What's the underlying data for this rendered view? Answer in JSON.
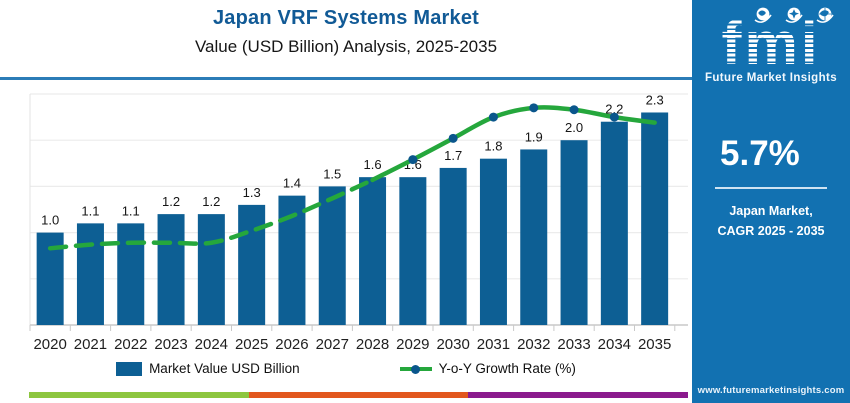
{
  "header": {
    "title": "Japan VRF Systems Market",
    "subtitle": "Value (USD Billion) Analysis, 2025-2035"
  },
  "chart_data": {
    "type": "bar",
    "title": "Japan VRF Systems Market",
    "subtitle": "Value (USD Billion) Analysis, 2025-2035",
    "categories": [
      "2020",
      "2021",
      "2022",
      "2023",
      "2024",
      "2025",
      "2026",
      "2027",
      "2028",
      "2029",
      "2030",
      "2031",
      "2032",
      "2033",
      "2034",
      "2035"
    ],
    "bar_series": {
      "name": "Market Value USD Billion",
      "values": [
        1.0,
        1.1,
        1.1,
        1.2,
        1.2,
        1.3,
        1.4,
        1.5,
        1.6,
        1.6,
        1.7,
        1.8,
        1.9,
        2.0,
        2.2,
        2.3
      ],
      "labels": [
        "1.0",
        "1.1",
        "1.1",
        "1.2",
        "1.2",
        "1.3",
        "1.4",
        "1.5",
        "1.6",
        "1.6",
        "1.7",
        "1.8",
        "1.9",
        "2.0",
        "2.2",
        "2.3"
      ],
      "color": "#0d5f94"
    },
    "line_series": {
      "name": "Y-o-Y Growth Rate (%)",
      "color": "#25a73c",
      "marker_color": "#0a568c",
      "axis_scale_labeled": false,
      "values_on_value_axis_est": [
        0.83,
        0.87,
        0.89,
        0.89,
        0.89,
        1.02,
        1.18,
        1.37,
        1.57,
        1.79,
        2.02,
        2.25,
        2.35,
        2.33,
        2.25,
        2.19
      ],
      "dashed_segment": [
        "2020",
        "2028"
      ],
      "solid_segment": [
        "2028",
        "2035"
      ],
      "marker_years": [
        "2029",
        "2030",
        "2031",
        "2032",
        "2033",
        "2034"
      ]
    },
    "ylim": [
      0,
      2.9
    ],
    "gridline_values": [
      0.5,
      1.0,
      1.5,
      2.0,
      2.5
    ],
    "grid": "horizontal-faint",
    "legend_position": "bottom"
  },
  "legend": {
    "bar_label": "Market Value USD Billion",
    "line_label": "Y-o-Y Growth Rate (%)"
  },
  "sidebar": {
    "logo_text": "fmi",
    "logo_subtitle": "Future Market Insights",
    "cagr_value": "5.7%",
    "market_line1": "Japan Market,",
    "market_line2": "CAGR 2025 - 2035",
    "website": "www.futuremarketinsights.com",
    "bg_color": "#1271b1"
  },
  "footer_stripe": {
    "colors": [
      "#8dc63f",
      "#e2571e",
      "#8b1a8d"
    ]
  },
  "style_colors": {
    "title_blue": "#115a96",
    "rule_blue": "#2b7cb7",
    "bar_blue": "#0d5f94",
    "line_green": "#25a73c",
    "marker_blue": "#0a568c"
  }
}
